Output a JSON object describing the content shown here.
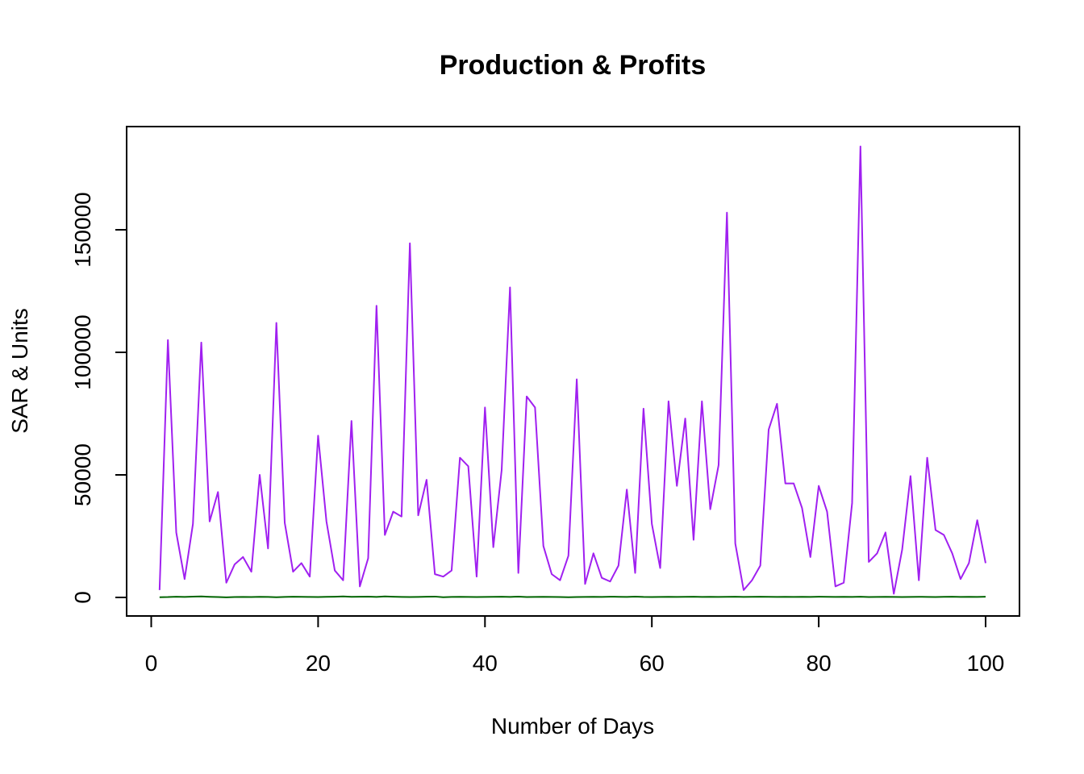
{
  "chart_data": {
    "type": "line",
    "title": "Production & Profits",
    "xlabel": "Number of Days",
    "ylabel": "SAR & Units",
    "xlim": [
      0,
      100
    ],
    "ylim": [
      0,
      180000
    ],
    "x_ticks": [
      "0",
      "20",
      "40",
      "60",
      "80",
      "100"
    ],
    "y_ticks": [
      "0",
      "50000",
      "100000",
      "150000"
    ],
    "grid": false,
    "legend": "none",
    "x": [
      1,
      2,
      3,
      4,
      5,
      6,
      7,
      8,
      9,
      10,
      11,
      12,
      13,
      14,
      15,
      16,
      17,
      18,
      19,
      20,
      21,
      22,
      23,
      24,
      25,
      26,
      27,
      28,
      29,
      30,
      31,
      32,
      33,
      34,
      35,
      36,
      37,
      38,
      39,
      40,
      41,
      42,
      43,
      44,
      45,
      46,
      47,
      48,
      49,
      50,
      51,
      52,
      53,
      54,
      55,
      56,
      57,
      58,
      59,
      60,
      61,
      62,
      63,
      64,
      65,
      66,
      67,
      68,
      69,
      70,
      71,
      72,
      73,
      74,
      75,
      76,
      77,
      78,
      79,
      80,
      81,
      82,
      83,
      84,
      85,
      86,
      87,
      88,
      89,
      90,
      91,
      92,
      93,
      94,
      95,
      96,
      97,
      98,
      99,
      100
    ],
    "series": [
      {
        "color": "#a020f0",
        "values": [
          3000,
          105000,
          26500,
          7500,
          30000,
          104000,
          31000,
          43000,
          6000,
          13500,
          16500,
          10500,
          50000,
          20000,
          112000,
          30500,
          10500,
          14000,
          8500,
          66000,
          31000,
          11000,
          7000,
          72000,
          4500,
          16000,
          119000,
          25500,
          35000,
          33000,
          144500,
          33500,
          48000,
          9500,
          8500,
          11000,
          57000,
          53500,
          8500,
          77500,
          20500,
          52000,
          126500,
          10000,
          82000,
          77500,
          21000,
          9500,
          7000,
          17000,
          89000,
          5500,
          18000,
          8000,
          6500,
          13000,
          44000,
          10000,
          77000,
          30000,
          12000,
          80000,
          45500,
          73000,
          23500,
          80000,
          36000,
          54000,
          157000,
          22000,
          3000,
          7000,
          13000,
          68500,
          79000,
          46500,
          46500,
          36500,
          16500,
          45500,
          35000,
          4500,
          6000,
          38500,
          184000,
          14500,
          18000,
          26500,
          1500,
          19500,
          49500,
          7000,
          57000,
          27500,
          25500,
          18000,
          7500,
          14000,
          31500,
          14000
        ]
      },
      {
        "color": "#006400",
        "values": [
          100,
          150,
          300,
          200,
          350,
          400,
          250,
          150,
          50,
          150,
          200,
          150,
          250,
          200,
          100,
          200,
          300,
          250,
          200,
          150,
          250,
          300,
          400,
          250,
          300,
          350,
          200,
          400,
          300,
          200,
          150,
          200,
          300,
          350,
          100,
          200,
          250,
          200,
          150,
          200,
          250,
          300,
          200,
          350,
          150,
          200,
          250,
          200,
          150,
          100,
          150,
          200,
          250,
          200,
          300,
          250,
          200,
          350,
          200,
          150,
          200,
          250,
          200,
          250,
          300,
          200,
          250,
          200,
          250,
          300,
          200,
          250,
          300,
          250,
          200,
          250,
          200,
          250,
          200,
          300,
          250,
          200,
          250,
          200,
          300,
          150,
          200,
          250,
          200,
          150,
          200,
          250,
          200,
          150,
          250,
          300,
          200,
          250,
          200,
          300
        ]
      }
    ]
  }
}
